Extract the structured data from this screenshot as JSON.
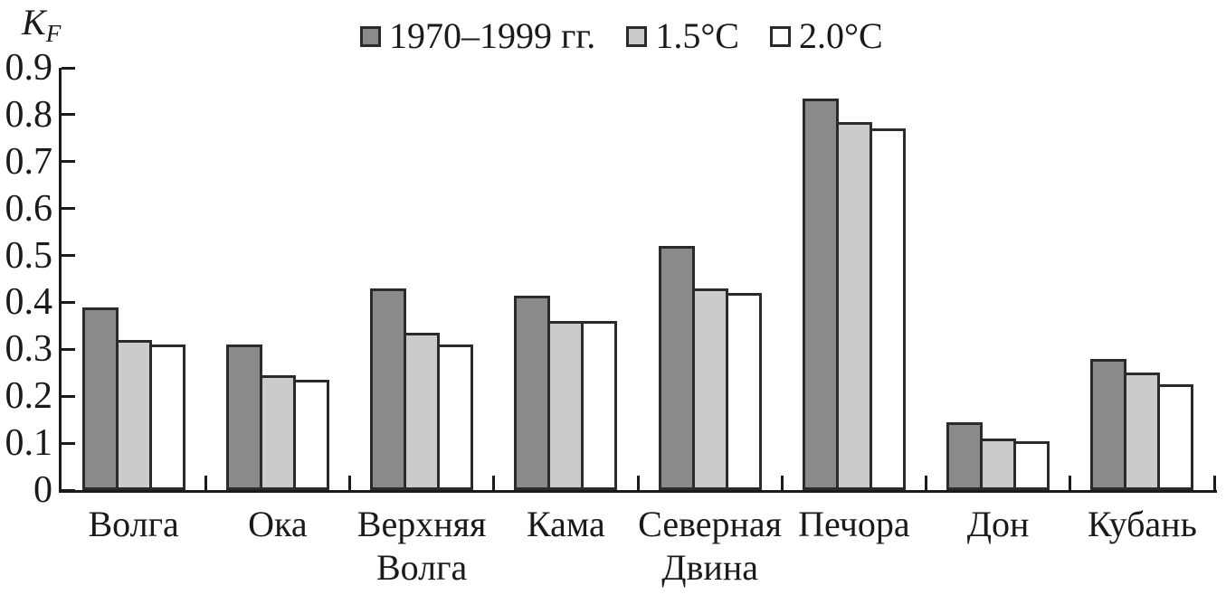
{
  "figure": {
    "y_axis_title": {
      "symbol": "K",
      "subscript": "F"
    }
  },
  "chart_data": {
    "type": "bar",
    "title": "",
    "xlabel": "",
    "ylabel": "K_F",
    "ylim": [
      0,
      0.9
    ],
    "y_ticks": [
      0,
      0.1,
      0.2,
      0.3,
      0.4,
      0.5,
      0.6,
      0.7,
      0.8,
      0.9
    ],
    "y_tick_labels": [
      "0",
      "0.1",
      "0.2",
      "0.3",
      "0.4",
      "0.5",
      "0.6",
      "0.7",
      "0.8",
      "0.9"
    ],
    "grid": false,
    "legend_position": "top-center",
    "categories": [
      "Волга",
      "Ока",
      "Верхняя Волга",
      "Кама",
      "Северная Двина",
      "Печора",
      "Дон",
      "Кубань"
    ],
    "series": [
      {
        "name": "1970–1999 гг.",
        "color": "#8a8a8a",
        "values": [
          0.39,
          0.31,
          0.43,
          0.415,
          0.52,
          0.835,
          0.145,
          0.28
        ]
      },
      {
        "name": "1.5°C",
        "color": "#cbcbcb",
        "values": [
          0.32,
          0.245,
          0.335,
          0.36,
          0.43,
          0.785,
          0.11,
          0.25
        ]
      },
      {
        "name": "2.0°C",
        "color": "#ffffff",
        "values": [
          0.31,
          0.235,
          0.31,
          0.36,
          0.42,
          0.77,
          0.105,
          0.225
        ]
      }
    ],
    "colors": {
      "bar_border": "#2b2b2b",
      "axis": "#1a1a1a",
      "text": "#1a1a1a",
      "background": "#ffffff"
    }
  }
}
